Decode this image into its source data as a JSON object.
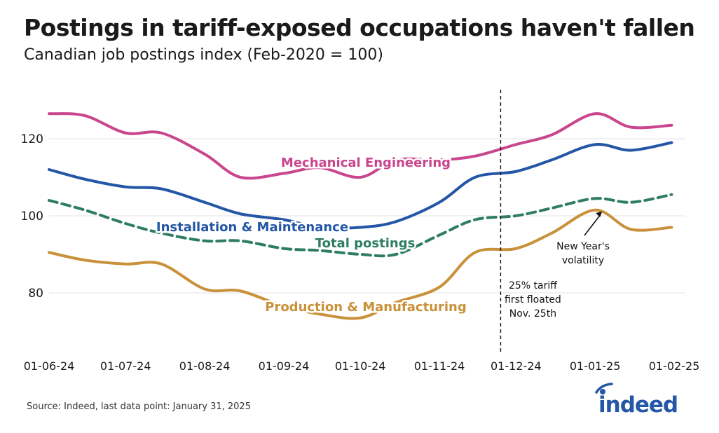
{
  "title": "Postings in tariff-exposed occupations haven't fallen",
  "subtitle": "Canadian job postings index (Feb-2020 = 100)",
  "source": "Source: Indeed, last data point: January 31, 2025",
  "logo_text": "indeed",
  "colors": {
    "mechanical": "#c9468e",
    "installation": "#2456a6",
    "total": "#2e7d63",
    "production": "#c8913a",
    "grid": "#e3e3e3",
    "text": "#1a1a1a"
  },
  "chart_data": {
    "type": "line",
    "ylim": [
      66,
      132
    ],
    "yticks": [
      80,
      100,
      120
    ],
    "xticks": [
      "01-06-24",
      "01-07-24",
      "01-08-24",
      "01-09-24",
      "01-10-24",
      "01-11-24",
      "01-12-24",
      "01-01-25",
      "01-02-25"
    ],
    "x": [
      "2024-06-01",
      "2024-06-15",
      "2024-07-01",
      "2024-07-15",
      "2024-08-01",
      "2024-08-15",
      "2024-09-01",
      "2024-09-15",
      "2024-10-01",
      "2024-10-15",
      "2024-11-01",
      "2024-11-15",
      "2024-12-01",
      "2024-12-15",
      "2025-01-01",
      "2025-01-15",
      "2025-01-31"
    ],
    "series": [
      {
        "name": "Mechanical Engineering",
        "key": "mechanical",
        "values": [
          126.5,
          126.0,
          121.5,
          121.5,
          116.0,
          110.0,
          111.0,
          112.5,
          110.0,
          114.5,
          114.5,
          115.5,
          118.5,
          121.0,
          126.5,
          123.0,
          123.5
        ]
      },
      {
        "name": "Installation & Maintenance",
        "key": "installation",
        "values": [
          112.0,
          109.5,
          107.5,
          107.0,
          103.5,
          100.5,
          99.0,
          97.0,
          97.0,
          98.5,
          103.5,
          110.0,
          111.5,
          114.5,
          118.5,
          117.0,
          119.0
        ]
      },
      {
        "name": "Total postings",
        "key": "total",
        "dashed": true,
        "values": [
          104.0,
          101.5,
          98.0,
          95.5,
          93.5,
          93.5,
          91.5,
          91.0,
          90.0,
          90.0,
          95.0,
          99.0,
          100.0,
          102.0,
          104.5,
          103.5,
          105.5
        ]
      },
      {
        "name": "Production & Manufacturing",
        "key": "production",
        "values": [
          90.5,
          88.5,
          87.5,
          87.5,
          81.0,
          80.5,
          76.5,
          74.5,
          73.5,
          77.5,
          81.5,
          90.5,
          91.5,
          95.5,
          101.5,
          96.5,
          97.0
        ]
      }
    ],
    "vline": {
      "x": "2024-11-25",
      "label": [
        "25% tariff",
        "first floated",
        "Nov. 25th"
      ]
    },
    "annotation": {
      "x": "2025-01-01",
      "label": [
        "New Year's",
        "volatility"
      ]
    }
  }
}
